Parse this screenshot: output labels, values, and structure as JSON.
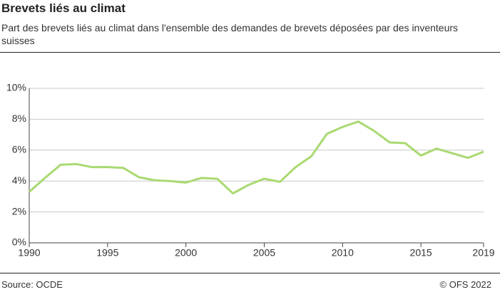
{
  "chart_data": {
    "type": "line",
    "title": "Brevets liés au climat",
    "subtitle": "Part des brevets liés au climat dans l'ensemble des demandes de brevets déposées par des inventeurs suisses",
    "source": "Source: OCDE",
    "copyright": "© OFS 2022",
    "x": [
      1990,
      1991,
      1992,
      1993,
      1994,
      1995,
      1996,
      1997,
      1998,
      1999,
      2000,
      2001,
      2002,
      2003,
      2004,
      2005,
      2006,
      2007,
      2008,
      2009,
      2010,
      2011,
      2012,
      2013,
      2014,
      2015,
      2016,
      2017,
      2018,
      2019
    ],
    "values": [
      3.3,
      4.2,
      5.05,
      5.1,
      4.9,
      4.9,
      4.85,
      4.25,
      4.05,
      4.0,
      3.9,
      4.2,
      4.15,
      3.2,
      3.75,
      4.15,
      3.95,
      4.9,
      5.6,
      7.05,
      7.5,
      7.85,
      7.25,
      6.5,
      6.45,
      5.65,
      6.1,
      5.8,
      5.5,
      5.9
    ],
    "color": "#a9d971",
    "xlim": [
      1990,
      2019
    ],
    "xticks": [
      1990,
      1995,
      2000,
      2005,
      2010,
      2015,
      2019
    ],
    "ylim": [
      0,
      10
    ],
    "yticks": [
      {
        "value": 0,
        "label": "0%"
      },
      {
        "value": 2,
        "label": "2%"
      },
      {
        "value": 4,
        "label": "4%"
      },
      {
        "value": 6,
        "label": "6%"
      },
      {
        "value": 8,
        "label": "8%"
      },
      {
        "value": 10,
        "label": "10%"
      }
    ],
    "grid": true
  }
}
